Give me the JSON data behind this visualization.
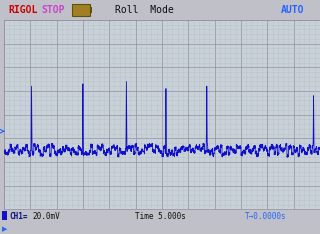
{
  "screen_bg": "#c8d0d8",
  "header_bg": "#c0c0c8",
  "footer_bg": "#c0c0c8",
  "grid_color": "#9090a0",
  "grid_minor_color": "#a8b0b8",
  "trace_color": "#1010cc",
  "rigol_color": "#cc0000",
  "stop_color": "#cc44cc",
  "header_text_color": "#cc44cc",
  "white_text": "#ffffff",
  "black_text": "#000000",
  "auto_color": "#2266ff",
  "ch1_color": "#1010cc",
  "trigger_color": "#2266ff",
  "title": "RIGOL",
  "status": "STOP",
  "mode_text": "Roll  Mode",
  "auto_text": "AUTO",
  "ch1_label": "CH1=",
  "ch1_scale": "20.0mV",
  "time_label": "Time 5.000s",
  "trigger_label": "T→0.0000s",
  "num_hdiv": 12,
  "num_vdiv": 8,
  "xlim": [
    0,
    12
  ],
  "ylim": [
    0,
    8
  ],
  "spike_positions": [
    1.05,
    3.0,
    4.65,
    6.15,
    7.7,
    11.75
  ],
  "spike_heights": [
    5.2,
    5.3,
    5.4,
    5.1,
    5.2,
    4.8
  ],
  "baseline_level": 2.5,
  "step_noise": 0.22,
  "micro_noise": 0.08
}
